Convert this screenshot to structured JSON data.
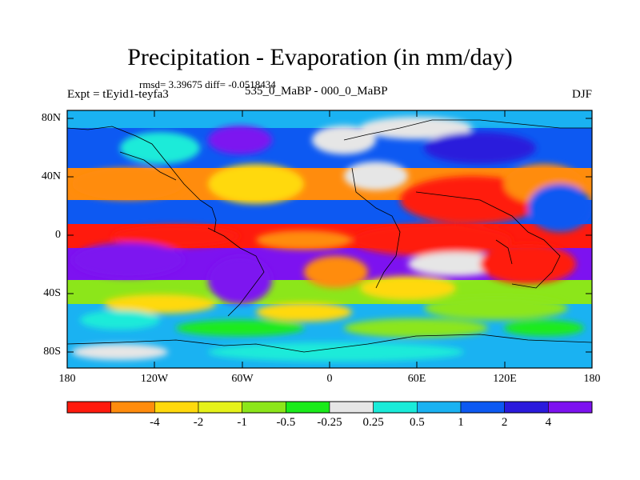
{
  "title": "Precipitation - Evaporation (in mm/day)",
  "stats": "rmsd= 3.39675 diff= -0.0518434",
  "experiment": "Expt = tEyid1-teyfa3",
  "periods": "535_0_MaBP - 000_0_MaBP",
  "season": "DJF",
  "lat_ticks": [
    "80N",
    "40N",
    "0",
    "40S",
    "80S"
  ],
  "lon_ticks": [
    "180",
    "120W",
    "60W",
    "0",
    "60E",
    "120E",
    "180"
  ],
  "legend": {
    "labels": [
      "-4",
      "-2",
      "-1",
      "-0.5",
      "-0.25",
      "0.25",
      "0.5",
      "1",
      "2",
      "4"
    ],
    "colors": [
      "#ff1a0d",
      "#ff8c0d",
      "#ffd90d",
      "#e6f21a",
      "#8ce61a",
      "#1aeb1a",
      "#e6e6e6",
      "#1aebd9",
      "#1ab2f2",
      "#0d59f2",
      "#2a1adc",
      "#7d12f0"
    ]
  }
}
